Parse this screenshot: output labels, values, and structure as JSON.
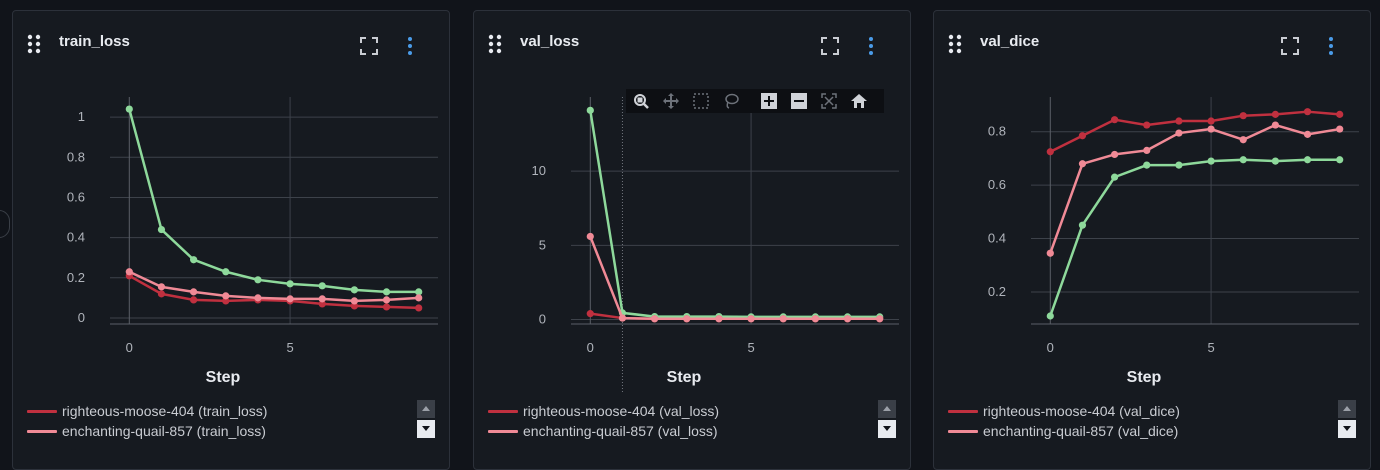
{
  "panels": [
    {
      "title": "train_loss",
      "xlabel": "Step",
      "legend": [
        {
          "label": "righteous-moose-404 (train_loss)",
          "color": "#c0303f"
        },
        {
          "label": "enchanting-quail-857 (train_loss)",
          "color": "#f08a96"
        }
      ]
    },
    {
      "title": "val_loss",
      "xlabel": "Step",
      "legend": [
        {
          "label": "righteous-moose-404 (val_loss)",
          "color": "#c0303f"
        },
        {
          "label": "enchanting-quail-857 (val_loss)",
          "color": "#f08a96"
        }
      ]
    },
    {
      "title": "val_dice",
      "xlabel": "Step",
      "legend": [
        {
          "label": "righteous-moose-404 (val_dice)",
          "color": "#c0303f"
        },
        {
          "label": "enchanting-quail-857 (val_dice)",
          "color": "#f08a96"
        }
      ]
    }
  ],
  "modebar": [
    "zoom-icon",
    "pan-icon",
    "box-select-icon",
    "lasso-select-icon",
    "zoom-in-icon",
    "zoom-out-icon",
    "autoscale-icon",
    "reset-axes-icon"
  ],
  "chart_data": [
    {
      "type": "line",
      "title": "train_loss",
      "xlabel": "Step",
      "ylabel": "",
      "x": [
        0,
        1,
        2,
        3,
        4,
        5,
        6,
        7,
        8,
        9
      ],
      "xlim": [
        -0.6,
        9.6
      ],
      "ylim": [
        -0.03,
        1.1
      ],
      "xticks": [
        0,
        5
      ],
      "yticks": [
        0,
        0.2,
        0.4,
        0.6,
        0.8,
        1
      ],
      "ytick_labels": [
        "0",
        "0.2",
        "0.4",
        "0.6",
        "0.8",
        "1"
      ],
      "grid": true,
      "legend_position": "bottom-left",
      "series": [
        {
          "name": "",
          "color": "#8ed99b",
          "values": [
            1.04,
            0.44,
            0.29,
            0.23,
            0.19,
            0.17,
            0.16,
            0.14,
            0.13,
            0.13
          ]
        },
        {
          "name": "righteous-moose-404 (train_loss)",
          "color": "#c0303f",
          "values": [
            0.21,
            0.12,
            0.09,
            0.085,
            0.09,
            0.085,
            0.07,
            0.06,
            0.055,
            0.05
          ]
        },
        {
          "name": "enchanting-quail-857 (train_loss)",
          "color": "#f08a96",
          "values": [
            0.23,
            0.155,
            0.13,
            0.11,
            0.1,
            0.095,
            0.095,
            0.085,
            0.09,
            0.1
          ]
        }
      ]
    },
    {
      "type": "line",
      "title": "val_loss",
      "xlabel": "Step",
      "ylabel": "",
      "x": [
        0,
        1,
        2,
        3,
        4,
        5,
        6,
        7,
        8,
        9
      ],
      "xlim": [
        -0.6,
        9.6
      ],
      "ylim": [
        -0.3,
        15
      ],
      "xticks": [
        0,
        5
      ],
      "yticks": [
        0,
        5,
        10
      ],
      "ytick_labels": [
        "0",
        "5",
        "10"
      ],
      "grid": true,
      "legend_position": "bottom-left",
      "series": [
        {
          "name": "",
          "color": "#8ed99b",
          "values": [
            14.1,
            0.45,
            0.2,
            0.2,
            0.2,
            0.18,
            0.18,
            0.18,
            0.18,
            0.18
          ]
        },
        {
          "name": "righteous-moose-404 (val_loss)",
          "color": "#c0303f",
          "values": [
            0.4,
            0.1,
            0.05,
            0.05,
            0.05,
            0.05,
            0.05,
            0.05,
            0.05,
            0.05
          ]
        },
        {
          "name": "enchanting-quail-857 (val_loss)",
          "color": "#f08a96",
          "values": [
            5.6,
            0.1,
            0.05,
            0.05,
            0.05,
            0.05,
            0.05,
            0.05,
            0.05,
            0.05
          ]
        }
      ]
    },
    {
      "type": "line",
      "title": "val_dice",
      "xlabel": "Step",
      "ylabel": "",
      "x": [
        0,
        1,
        2,
        3,
        4,
        5,
        6,
        7,
        8,
        9
      ],
      "xlim": [
        -0.6,
        9.6
      ],
      "ylim": [
        0.08,
        0.93
      ],
      "xticks": [
        0,
        5
      ],
      "yticks": [
        0.2,
        0.4,
        0.6,
        0.8
      ],
      "ytick_labels": [
        "0.2",
        "0.4",
        "0.6",
        "0.8"
      ],
      "grid": true,
      "legend_position": "bottom-left",
      "series": [
        {
          "name": "",
          "color": "#8ed99b",
          "values": [
            0.11,
            0.45,
            0.63,
            0.675,
            0.675,
            0.69,
            0.695,
            0.69,
            0.695,
            0.695
          ]
        },
        {
          "name": "enchanting-quail-857 (val_dice)",
          "color": "#f08a96",
          "values": [
            0.345,
            0.68,
            0.715,
            0.73,
            0.795,
            0.81,
            0.77,
            0.825,
            0.79,
            0.81
          ]
        },
        {
          "name": "righteous-moose-404 (val_dice)",
          "color": "#c0303f",
          "values": [
            0.725,
            0.785,
            0.845,
            0.825,
            0.84,
            0.84,
            0.86,
            0.865,
            0.875,
            0.865
          ]
        }
      ]
    }
  ]
}
